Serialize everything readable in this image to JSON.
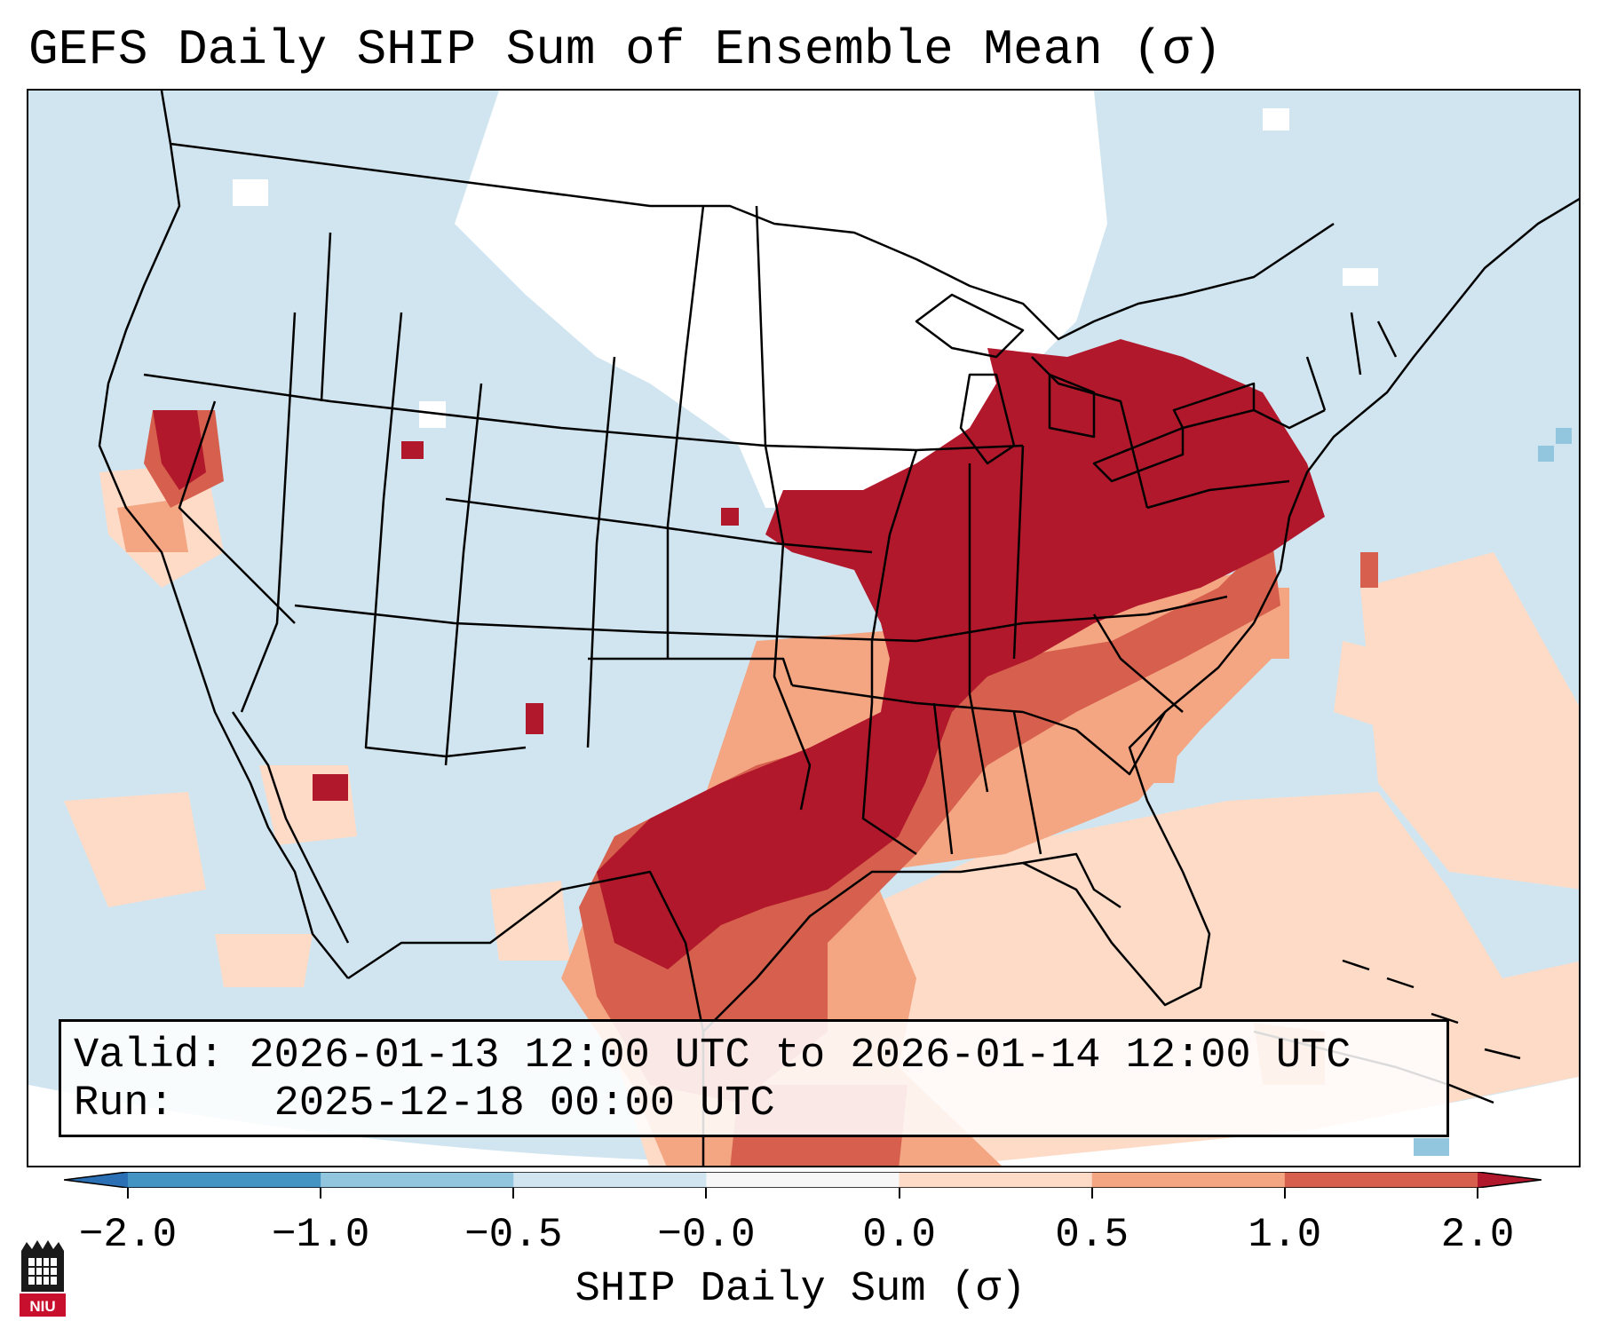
{
  "title": "GEFS Daily SHIP Sum of Ensemble Mean (σ)",
  "info": {
    "valid_label": "Valid:",
    "valid_value": "2026-01-13 12:00 UTC to 2026-01-14 12:00 UTC",
    "run_label": "Run:",
    "run_value": "2025-12-18 00:00 UTC"
  },
  "colorbar": {
    "label": "SHIP Daily Sum (σ)",
    "ticks": [
      "−2.0",
      "−1.0",
      "−0.5",
      "−0.0",
      "0.0",
      "0.5",
      "1.0",
      "2.0"
    ],
    "bins": [
      {
        "range": "< -2.0",
        "color": "#2b6fb4"
      },
      {
        "range": "-2.0 to -1.0",
        "color": "#4393c3"
      },
      {
        "range": "-1.0 to -0.5",
        "color": "#92c5de"
      },
      {
        "range": "-0.5 to -0.0",
        "color": "#d1e5f0"
      },
      {
        "range": "-0.0 to 0.0",
        "color": "#f7f7f7"
      },
      {
        "range": "0.0 to 0.5",
        "color": "#fddbc7"
      },
      {
        "range": "0.5 to 1.0",
        "color": "#f4a582"
      },
      {
        "range": "1.0 to 2.0",
        "color": "#d6604d"
      },
      {
        "range": "> 2.0",
        "color": "#b2182b"
      }
    ]
  },
  "map": {
    "region": "Contiguous United States",
    "background_color": "#d1e5f0",
    "near_zero_color": "#ffffff",
    "strong_positive_color": "#b2182b",
    "positive_color": "#d6604d",
    "weak_positive_color": "#f4a582",
    "slight_positive_color": "#fddbc7"
  },
  "logo": {
    "text": "NIU",
    "icon": "niu-logo-icon"
  }
}
